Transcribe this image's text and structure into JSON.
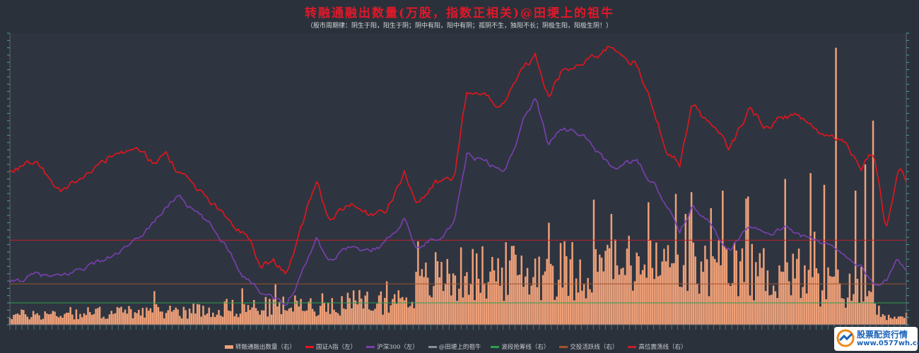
{
  "title": "转融通融出数量(万股，指数正相关)@田埂上的祖牛",
  "subtitle": "（股市周期律：阴生于阳，阳生于阴；阴中有阳，阳中有阴；孤阴不生，独阳不长；阴极生阳，阳极生阴！）",
  "watermark": {
    "brand": "股票配资行情",
    "url": "www.0577wh.com"
  },
  "colors": {
    "background": "#2b313a",
    "bars": "#f0a078",
    "index_a": "#e8141c",
    "hs300": "#7b3fb0",
    "blank": "#8a8f98",
    "band_low": "#2e9e4e",
    "band_mid": "#a0522d",
    "band_high": "#c0202c"
  },
  "chart_data": {
    "type": "line",
    "n_points": 460,
    "legend": [
      {
        "name": "转融通融出数量（右）",
        "color": "#f0a078",
        "kind": "bar"
      },
      {
        "name": "国证A指（左）",
        "color": "#e8141c",
        "kind": "line"
      },
      {
        "name": "沪深300（左）",
        "color": "#7b3fb0",
        "kind": "line"
      },
      {
        "name": "@田埂上的祖牛",
        "color": "#8a8f98",
        "kind": "line"
      },
      {
        "name": "波段抢筹线（右）",
        "color": "#2e9e4e",
        "kind": "line"
      },
      {
        "name": "交投活跃线（右）",
        "color": "#a0522d",
        "kind": "line"
      },
      {
        "name": "高位震荡线（右）",
        "color": "#c0202c",
        "kind": "line"
      }
    ],
    "left_axis": {
      "range": [
        0,
        100
      ]
    },
    "right_axis": {
      "range": [
        0,
        100
      ]
    },
    "reference_lines": {
      "low": 7.5,
      "mid": 14,
      "high": 29
    },
    "series_index_a": {
      "anchors": [
        [
          0,
          52
        ],
        [
          20,
          56
        ],
        [
          40,
          45
        ],
        [
          60,
          52
        ],
        [
          80,
          58
        ],
        [
          100,
          60
        ],
        [
          115,
          56
        ],
        [
          125,
          58
        ],
        [
          140,
          50
        ],
        [
          160,
          42
        ],
        [
          175,
          35
        ],
        [
          190,
          30
        ],
        [
          200,
          20
        ],
        [
          210,
          22
        ],
        [
          220,
          18
        ],
        [
          235,
          35
        ],
        [
          245,
          50
        ],
        [
          255,
          36
        ],
        [
          270,
          42
        ],
        [
          285,
          38
        ],
        [
          300,
          40
        ],
        [
          315,
          52
        ],
        [
          325,
          42
        ],
        [
          340,
          48
        ],
        [
          355,
          50
        ],
        [
          365,
          80
        ],
        [
          380,
          78
        ],
        [
          395,
          75
        ],
        [
          410,
          88
        ],
        [
          420,
          92
        ],
        [
          430,
          78
        ],
        [
          440,
          86
        ],
        [
          460,
          90
        ],
        [
          480,
          96
        ],
        [
          500,
          90
        ],
        [
          515,
          72
        ],
        [
          525,
          60
        ],
        [
          535,
          55
        ],
        [
          545,
          76
        ],
        [
          560,
          68
        ],
        [
          575,
          60
        ],
        [
          590,
          74
        ],
        [
          605,
          68
        ],
        [
          620,
          72
        ],
        [
          635,
          70
        ],
        [
          650,
          65
        ],
        [
          665,
          64
        ],
        [
          680,
          55
        ],
        [
          690,
          60
        ],
        [
          700,
          33
        ],
        [
          710,
          55
        ],
        [
          716,
          50
        ]
      ],
      "noise": 2.2
    },
    "series_hs300": {
      "anchors": [
        [
          0,
          14
        ],
        [
          20,
          17
        ],
        [
          40,
          16
        ],
        [
          60,
          20
        ],
        [
          80,
          23
        ],
        [
          100,
          28
        ],
        [
          120,
          38
        ],
        [
          135,
          45
        ],
        [
          145,
          40
        ],
        [
          160,
          34
        ],
        [
          175,
          26
        ],
        [
          185,
          18
        ],
        [
          200,
          12
        ],
        [
          210,
          10
        ],
        [
          220,
          6
        ],
        [
          235,
          20
        ],
        [
          245,
          30
        ],
        [
          255,
          22
        ],
        [
          270,
          27
        ],
        [
          285,
          25
        ],
        [
          300,
          28
        ],
        [
          315,
          37
        ],
        [
          325,
          26
        ],
        [
          340,
          30
        ],
        [
          355,
          34
        ],
        [
          365,
          58
        ],
        [
          380,
          56
        ],
        [
          395,
          52
        ],
        [
          410,
          70
        ],
        [
          420,
          78
        ],
        [
          430,
          62
        ],
        [
          440,
          68
        ],
        [
          460,
          64
        ],
        [
          480,
          54
        ],
        [
          500,
          56
        ],
        [
          515,
          48
        ],
        [
          525,
          40
        ],
        [
          535,
          32
        ],
        [
          545,
          40
        ],
        [
          560,
          34
        ],
        [
          575,
          26
        ],
        [
          590,
          35
        ],
        [
          605,
          30
        ],
        [
          620,
          34
        ],
        [
          635,
          30
        ],
        [
          650,
          28
        ],
        [
          665,
          25
        ],
        [
          680,
          20
        ],
        [
          690,
          14
        ],
        [
          700,
          15
        ],
        [
          710,
          22
        ],
        [
          716,
          18
        ]
      ],
      "noise": 1.6
    },
    "series_bars": {
      "phases": [
        [
          0,
          4
        ],
        [
          150,
          6
        ],
        [
          310,
          10
        ],
        [
          340,
          20
        ],
        [
          400,
          22
        ],
        [
          500,
          24
        ],
        [
          600,
          22
        ],
        [
          690,
          12
        ],
        [
          700,
          3
        ],
        [
          716,
          2
        ]
      ],
      "spikes": [
        [
          660,
          95
        ],
        [
          690,
          70
        ],
        [
          684,
          55
        ],
        [
          640,
          52
        ],
        [
          620,
          50
        ],
        [
          430,
          35
        ],
        [
          480,
          38
        ],
        [
          570,
          46
        ],
        [
          560,
          40
        ],
        [
          540,
          38
        ],
        [
          510,
          42
        ],
        [
          590,
          44
        ],
        [
          650,
          48
        ],
        [
          675,
          46
        ]
      ]
    }
  }
}
